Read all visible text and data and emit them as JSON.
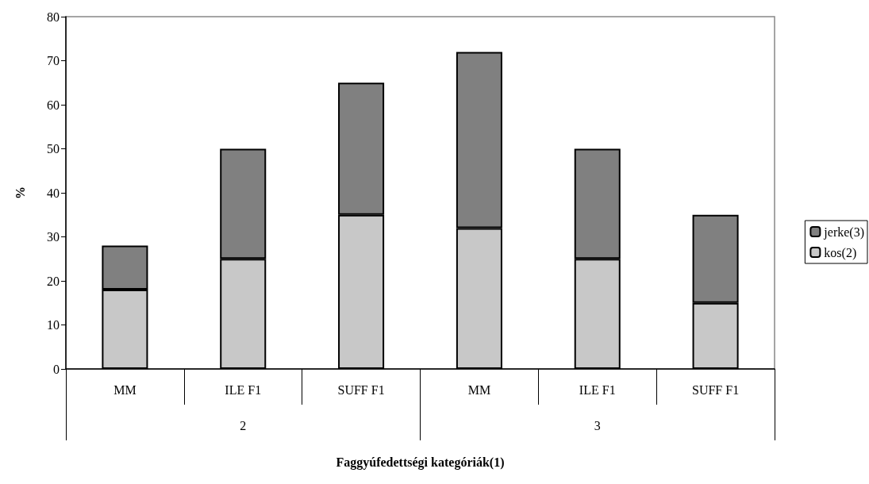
{
  "chart_data": {
    "type": "bar",
    "stacked": true,
    "categories": [
      "MM",
      "ILE F1",
      "SUFF F1",
      "MM",
      "ILE F1",
      "SUFF F1"
    ],
    "series": [
      {
        "name": "kos(2)",
        "color": "#c8c8c8",
        "values": [
          18,
          25,
          35,
          32,
          25,
          15
        ]
      },
      {
        "name": "jerke(3)",
        "color": "#808080",
        "values": [
          10,
          25,
          30,
          40,
          25,
          20
        ]
      }
    ],
    "annotations": [
      "2",
      "3"
    ],
    "xlabel": "Faggyúfedettségi kategóriák(1)",
    "ylabel": "%",
    "ylim": [
      0,
      80
    ],
    "yticks": [
      0,
      10,
      20,
      30,
      40,
      50,
      60,
      70,
      80
    ],
    "grid": false,
    "legend": "right"
  }
}
